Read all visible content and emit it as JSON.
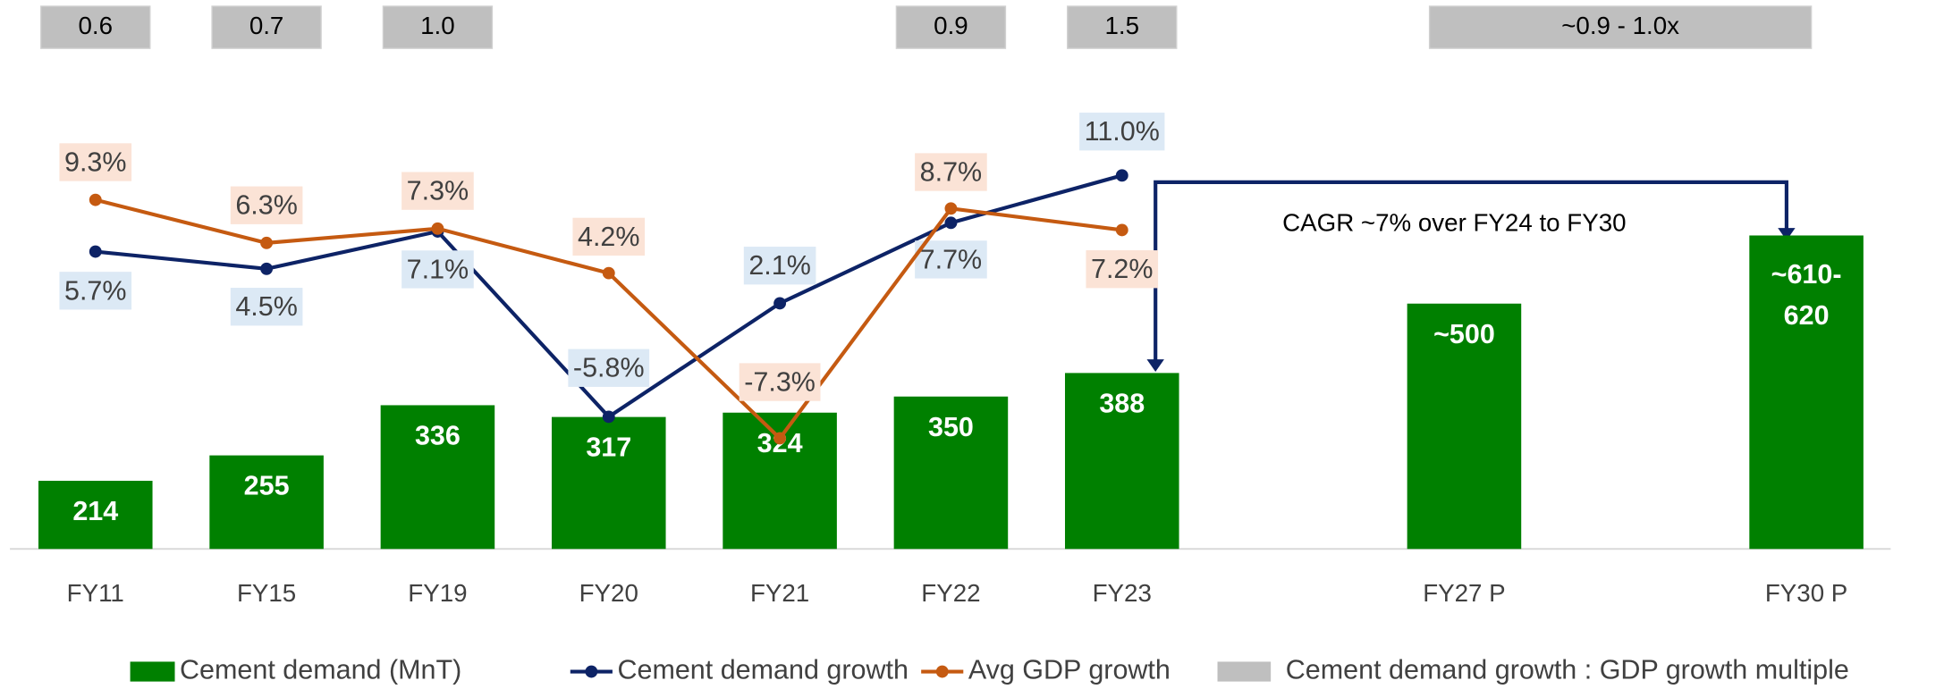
{
  "chart_data": {
    "type": "bar_line",
    "categories": [
      "FY11",
      "FY15",
      "FY19",
      "FY20",
      "FY21",
      "FY22",
      "FY23",
      null,
      "FY27 P",
      null,
      "FY30 P"
    ],
    "ylim": [
      104,
      904
    ],
    "y2lim": [
      -15,
      19.5
    ],
    "series": [
      {
        "name": "Cement demand (MnT)",
        "type": "bar",
        "color": "#008000",
        "values": [
          214,
          255,
          336,
          317,
          324,
          350,
          388,
          null,
          500,
          null,
          610
        ],
        "value_labels": [
          "214",
          "255",
          "336",
          "317",
          "324",
          "350",
          "388",
          null,
          "~500",
          null,
          "~610-620"
        ]
      },
      {
        "name": "Cement demand growth",
        "type": "line",
        "axis": "y2",
        "color": "#0d2366",
        "label_color": "#dce9f5",
        "values": [
          5.7,
          4.5,
          7.1,
          -5.8,
          2.1,
          7.7,
          11.0,
          null,
          null,
          null,
          null
        ],
        "value_labels": [
          "5.7%",
          "4.5%",
          "7.1%",
          "-5.8%",
          "2.1%",
          "7.7%",
          "11.0%",
          null,
          null,
          null,
          null
        ]
      },
      {
        "name": "Avg GDP growth",
        "type": "line",
        "axis": "y2",
        "color": "#c55a11",
        "label_color": "#fbe3d6",
        "values": [
          9.3,
          6.3,
          7.3,
          4.2,
          -7.3,
          8.7,
          7.2,
          null,
          null,
          null,
          null
        ],
        "value_labels": [
          "9.3%",
          "6.3%",
          "7.3%",
          "4.2%",
          "-7.3%",
          "8.7%",
          "7.2%",
          null,
          null,
          null,
          null
        ]
      },
      {
        "name": "Cement demand growth : GDP growth multiple",
        "type": "box",
        "color": "#bfbfbf",
        "values": [
          0.6,
          0.7,
          1.0,
          null,
          null,
          0.9,
          1.5,
          null,
          null,
          null,
          null
        ],
        "value_labels": [
          "0.6",
          "0.7",
          "1.0",
          null,
          null,
          "0.9",
          "1.5",
          null,
          null,
          null,
          null
        ]
      }
    ],
    "range_label": "~0.9 - 1.0x",
    "annotation": "CAGR ~7% over FY24 to FY30"
  }
}
